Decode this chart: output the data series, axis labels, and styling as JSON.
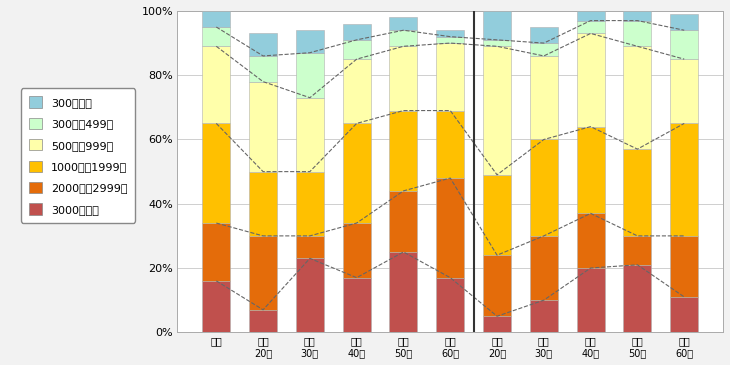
{
  "categories": [
    "全体",
    "男性\n20代",
    "男性\n30代",
    "男性\n40代",
    "男性\n50代",
    "男性\n60代",
    "女性\n20代",
    "女性\n30代",
    "女性\n40代",
    "女性\n50代",
    "女性\n60代"
  ],
  "series": {
    "3000円以上": [
      16,
      7,
      23,
      17,
      25,
      17,
      5,
      10,
      20,
      21,
      11
    ],
    "2000円～2999円": [
      18,
      23,
      7,
      17,
      19,
      31,
      19,
      20,
      17,
      9,
      19
    ],
    "1000円～1999円": [
      31,
      20,
      20,
      31,
      25,
      21,
      25,
      30,
      27,
      27,
      35
    ],
    "500円～999円": [
      24,
      28,
      23,
      20,
      20,
      21,
      40,
      26,
      29,
      32,
      20
    ],
    "300円～499円": [
      6,
      8,
      14,
      6,
      5,
      2,
      2,
      4,
      4,
      8,
      9
    ],
    "300円未満": [
      5,
      7,
      7,
      5,
      4,
      2,
      9,
      5,
      3,
      3,
      5
    ]
  },
  "stack_order": [
    "3000円以上",
    "2000円～2999円",
    "1000円～1999円",
    "500円～999円",
    "300円～499円",
    "300円未満"
  ],
  "colors": {
    "3000円以上": "#c0504d",
    "2000円～2999円": "#e46c0a",
    "1000円～1999円": "#ffc000",
    "500円～999円": "#ffffaa",
    "300円～499円": "#ccffcc",
    "300円未満": "#92cddc"
  },
  "legend_order": [
    "300円未満",
    "300円～499円",
    "500円～999円",
    "1000円～1999円",
    "2000円～2999円",
    "3000円以上"
  ],
  "yticks": [
    0,
    20,
    40,
    60,
    80,
    100
  ],
  "ytick_labels": [
    "0%",
    "20%",
    "40%",
    "60%",
    "80%",
    "100%"
  ],
  "background_color": "#f2f2f2",
  "plot_bg_color": "#ffffff",
  "grid_color": "#c8c8c8",
  "divider_index": 5,
  "bar_width": 0.6
}
